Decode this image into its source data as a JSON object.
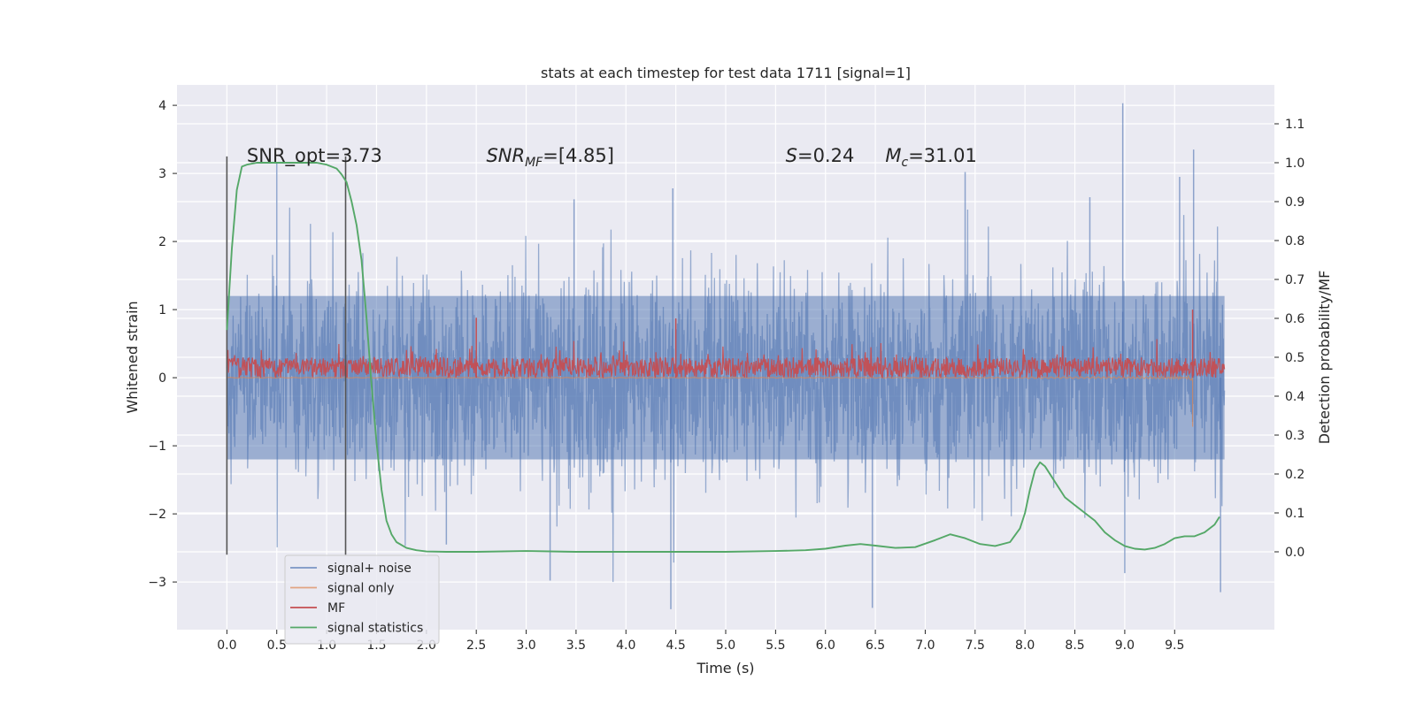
{
  "chart_data": {
    "type": "line",
    "title": "stats at each timestep for test data 1711 [signal=1]",
    "xlabel": "Time (s)",
    "ylabel_left": "Whitened strain",
    "ylabel_right": "Detection probability/MF",
    "xlim": [
      -0.5,
      10.5
    ],
    "ylim_left": [
      -3.7,
      4.3
    ],
    "ylim_right": [
      -0.2,
      1.2
    ],
    "x_ticks": [
      0.0,
      0.5,
      1.0,
      1.5,
      2.0,
      2.5,
      3.0,
      3.5,
      4.0,
      4.5,
      5.0,
      5.5,
      6.0,
      6.5,
      7.0,
      7.5,
      8.0,
      8.5,
      9.0,
      9.5
    ],
    "x_tick_labels": [
      "0.0",
      "0.5",
      "1.0",
      "1.5",
      "2.0",
      "2.5",
      "3.0",
      "3.5",
      "4.0",
      "4.5",
      "5.0",
      "5.5",
      "6.0",
      "6.5",
      "7.0",
      "7.5",
      "8.0",
      "8.5",
      "9.0",
      "9.5"
    ],
    "y_left_ticks": [
      -3,
      -2,
      -1,
      0,
      1,
      2,
      3,
      4
    ],
    "y_left_tick_labels": [
      "−3",
      "−2",
      "−1",
      "0",
      "1",
      "2",
      "3",
      "4"
    ],
    "y_right_ticks": [
      0.0,
      0.1,
      0.2,
      0.3,
      0.4,
      0.5,
      0.6,
      0.7,
      0.8,
      0.9,
      1.0,
      1.1
    ],
    "y_right_tick_labels": [
      "0.0",
      "0.1",
      "0.2",
      "0.3",
      "0.4",
      "0.5",
      "0.6",
      "0.7",
      "0.8",
      "0.9",
      "1.0",
      "1.1"
    ],
    "grid": true,
    "legend_position": "lower-left",
    "legend": [
      {
        "label": "signal+ noise",
        "color": "#4c72b0"
      },
      {
        "label": "signal only",
        "color": "#dd8452"
      },
      {
        "label": "MF",
        "color": "#c44e52"
      },
      {
        "label": "signal statistics",
        "color": "#55a868"
      }
    ],
    "annotations": [
      {
        "key": "snr_opt",
        "text": "SNR_opt=3.73",
        "x": 0.2,
        "y": 3.25
      },
      {
        "key": "snr_mf",
        "prefix": "SNR",
        "sub": "MF",
        "suffix": "=[4.85]",
        "x": 2.6,
        "y": 3.25
      },
      {
        "key": "s",
        "prefix": "S",
        "suffix": "=0.24",
        "x": 5.6,
        "y": 3.25
      },
      {
        "key": "mc",
        "prefix": "M",
        "sub": "c",
        "suffix": "=31.01",
        "x": 6.6,
        "y": 3.25
      }
    ],
    "vlines": [
      {
        "x": 0.0,
        "y_range": [
          -2.6,
          3.25
        ],
        "color": "#555555"
      },
      {
        "x": 1.19,
        "y_range": [
          -2.6,
          3.25
        ],
        "color": "#555555"
      }
    ],
    "series": [
      {
        "name": "signal+ noise",
        "axis": "left",
        "color": "#4c72b0",
        "x_range": [
          0.0,
          10.0
        ],
        "band_low": -1.2,
        "band_high": 1.2,
        "peaks": [
          [
            8.98,
            4.03
          ],
          [
            9.69,
            3.35
          ],
          [
            7.4,
            3.02
          ],
          [
            9.55,
            2.95
          ],
          [
            4.47,
            2.78
          ],
          [
            3.48,
            2.62
          ],
          [
            0.5,
            3.15
          ],
          [
            8.65,
            2.65
          ],
          [
            4.45,
            -3.4
          ],
          [
            6.47,
            -3.38
          ],
          [
            9.96,
            -3.15
          ],
          [
            3.24,
            -2.98
          ],
          [
            9.0,
            -2.87
          ],
          [
            2.2,
            -2.45
          ]
        ]
      },
      {
        "name": "signal only",
        "axis": "left",
        "color": "#dd8452",
        "x_range": [
          0.0,
          9.68
        ],
        "chirp_start": 8.0,
        "chirp_end": 9.68,
        "merger_min": -0.72
      },
      {
        "name": "MF",
        "axis": "left",
        "color": "#c44e52",
        "x_range": [
          0.0,
          10.0
        ],
        "band_low": 0.0,
        "band_high": 0.3,
        "peaks": [
          [
            2.5,
            0.88
          ],
          [
            4.5,
            0.87
          ],
          [
            9.68,
            1.0
          ]
        ]
      },
      {
        "name": "signal statistics",
        "axis": "right",
        "color": "#55a868",
        "x": [
          0.0,
          0.05,
          0.1,
          0.15,
          0.2,
          0.3,
          0.5,
          0.7,
          0.9,
          1.0,
          1.1,
          1.15,
          1.2,
          1.25,
          1.3,
          1.35,
          1.4,
          1.45,
          1.5,
          1.55,
          1.6,
          1.65,
          1.7,
          1.8,
          1.9,
          2.0,
          2.2,
          2.5,
          3.0,
          3.5,
          4.0,
          4.5,
          5.0,
          5.5,
          5.8,
          6.0,
          6.2,
          6.35,
          6.5,
          6.7,
          6.9,
          7.1,
          7.25,
          7.4,
          7.55,
          7.7,
          7.85,
          7.95,
          8.0,
          8.05,
          8.1,
          8.15,
          8.2,
          8.3,
          8.4,
          8.5,
          8.6,
          8.7,
          8.8,
          8.9,
          9.0,
          9.1,
          9.2,
          9.3,
          9.4,
          9.5,
          9.6,
          9.7,
          9.8,
          9.9,
          9.95
        ],
        "y": [
          0.57,
          0.78,
          0.93,
          0.99,
          0.995,
          1.0,
          1.0,
          1.0,
          1.0,
          0.995,
          0.985,
          0.97,
          0.95,
          0.9,
          0.84,
          0.75,
          0.6,
          0.43,
          0.28,
          0.16,
          0.08,
          0.045,
          0.025,
          0.01,
          0.004,
          0.001,
          0.0,
          0.0,
          0.002,
          0.0,
          0.0,
          0.0,
          0.0,
          0.002,
          0.004,
          0.008,
          0.016,
          0.02,
          0.016,
          0.01,
          0.012,
          0.03,
          0.045,
          0.035,
          0.02,
          0.015,
          0.025,
          0.06,
          0.1,
          0.16,
          0.21,
          0.23,
          0.22,
          0.18,
          0.14,
          0.12,
          0.1,
          0.08,
          0.05,
          0.03,
          0.015,
          0.008,
          0.006,
          0.01,
          0.02,
          0.035,
          0.04,
          0.04,
          0.05,
          0.07,
          0.09
        ]
      }
    ]
  }
}
